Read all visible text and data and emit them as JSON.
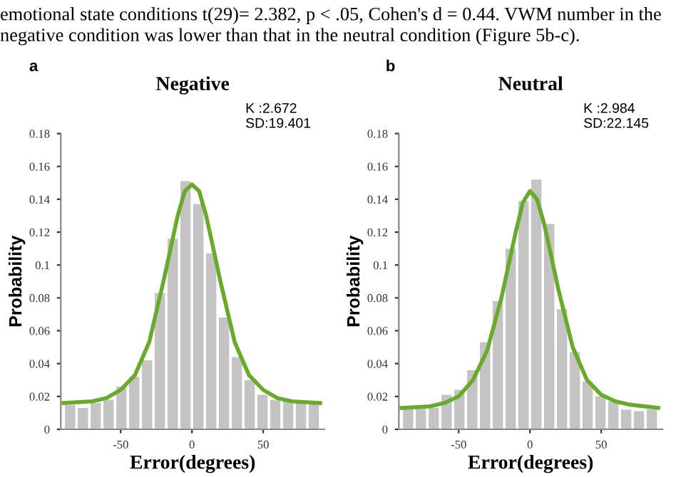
{
  "chart_data": [
    {
      "type": "histogram",
      "title": "Negative",
      "xlabel": "Error(degrees)",
      "ylabel": "Probability",
      "annotations": [
        "emotional state conditions t(29)= 2.382, p < .05, Cohen's d = 0.44. VWM number in the negative condition was lower than that in the neutral condition (Figure 5b-c).",
        "a",
        "K :2.672\nSD:19.401"
      ],
      "bins": [
        -90,
        -81,
        -72,
        -63,
        -54,
        -45,
        -36,
        -27,
        -18,
        -9,
        0,
        9,
        18,
        27,
        36,
        45,
        54,
        63,
        72,
        81,
        90
      ],
      "values": [
        0.015,
        0.013,
        0.016,
        0.018,
        0.026,
        0.032,
        0.042,
        0.083,
        0.116,
        0.151,
        0.137,
        0.107,
        0.068,
        0.044,
        0.03,
        0.021,
        0.018,
        0.017,
        0.016,
        0.016
      ],
      "color": "#c4c4c4",
      "series": [
        {
          "type": "line",
          "color": "#6aaa2a",
          "x": [
            -90,
            -70,
            -60,
            -50,
            -40,
            -30,
            -20,
            -10,
            -5,
            0,
            5,
            10,
            20,
            30,
            40,
            50,
            60,
            70,
            90
          ],
          "values": [
            0.016,
            0.017,
            0.019,
            0.024,
            0.033,
            0.053,
            0.09,
            0.13,
            0.145,
            0.149,
            0.145,
            0.13,
            0.09,
            0.053,
            0.033,
            0.024,
            0.019,
            0.017,
            0.016
          ]
        }
      ],
      "xlim": [
        -92,
        93
      ],
      "xticks": [
        -50,
        0,
        50
      ],
      "ylim": [
        0,
        0.18
      ],
      "yticks": [
        0,
        0.02,
        0.04,
        0.06,
        0.08,
        0.1,
        0.12,
        0.14,
        0.16,
        0.18
      ],
      "grid": false
    },
    {
      "type": "histogram",
      "title": "Neutral",
      "xlabel": "Error(degrees)",
      "ylabel": "Probability",
      "annotations": [
        "b",
        "K :2.984\nSD:22.145"
      ],
      "bins": [
        -90,
        -81,
        -72,
        -63,
        -54,
        -45,
        -36,
        -27,
        -18,
        -9,
        0,
        9,
        18,
        27,
        36,
        45,
        54,
        63,
        72,
        81,
        90
      ],
      "values": [
        0.013,
        0.013,
        0.013,
        0.021,
        0.024,
        0.036,
        0.053,
        0.078,
        0.11,
        0.139,
        0.152,
        0.125,
        0.073,
        0.047,
        0.029,
        0.02,
        0.017,
        0.012,
        0.011,
        0.012
      ],
      "color": "#c4c4c4",
      "series": [
        {
          "type": "line",
          "color": "#6aaa2a",
          "x": [
            -90,
            -70,
            -60,
            -50,
            -40,
            -30,
            -20,
            -10,
            -5,
            0,
            5,
            10,
            20,
            30,
            40,
            50,
            60,
            70,
            90
          ],
          "values": [
            0.013,
            0.014,
            0.016,
            0.02,
            0.03,
            0.048,
            0.08,
            0.12,
            0.138,
            0.145,
            0.14,
            0.125,
            0.085,
            0.05,
            0.03,
            0.021,
            0.017,
            0.015,
            0.013
          ]
        }
      ],
      "xlim": [
        -92,
        93
      ],
      "xticks": [
        -50,
        0,
        50
      ],
      "ylim": [
        0,
        0.18
      ],
      "yticks": [
        0,
        0.02,
        0.04,
        0.06,
        0.08,
        0.1,
        0.12,
        0.14,
        0.16,
        0.18
      ],
      "grid": false
    }
  ]
}
